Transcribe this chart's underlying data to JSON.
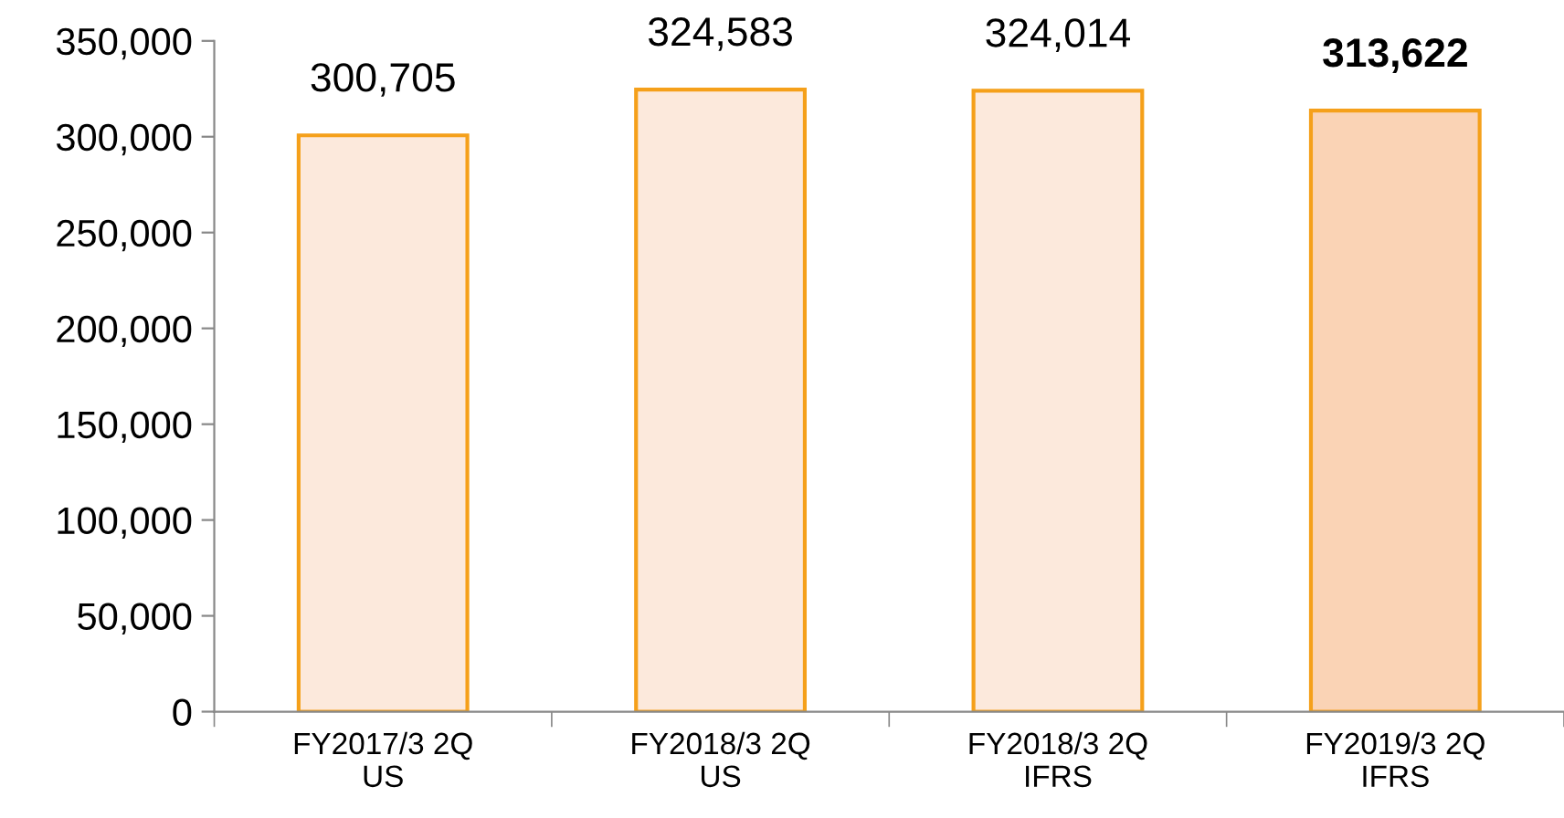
{
  "chart_data": {
    "type": "bar",
    "categories": [
      "FY2017/3 2Q\nUS",
      "FY2018/3 2Q\nUS",
      "FY2018/3 2Q\nIFRS",
      "FY2019/3 2Q\nIFRS"
    ],
    "values": [
      300705,
      324583,
      324014,
      313622
    ],
    "colors": [
      "#fce9dc",
      "#fce9dc",
      "#fce9dc",
      "#fad3b5"
    ],
    "value_labels": [
      "300,705",
      "324,583",
      "324,014",
      "313,622"
    ],
    "ylim": [
      0,
      350000
    ],
    "yticks": [
      {
        "value": 0,
        "label": "0"
      },
      {
        "value": 50000,
        "label": "50,000"
      },
      {
        "value": 100000,
        "label": "100,000"
      },
      {
        "value": 150000,
        "label": "150,000"
      },
      {
        "value": 200000,
        "label": "200,000"
      },
      {
        "value": 250000,
        "label": "250,000"
      },
      {
        "value": 300000,
        "label": "300,000"
      },
      {
        "value": 350000,
        "label": "350,000"
      }
    ],
    "grid": false,
    "legend": false
  }
}
